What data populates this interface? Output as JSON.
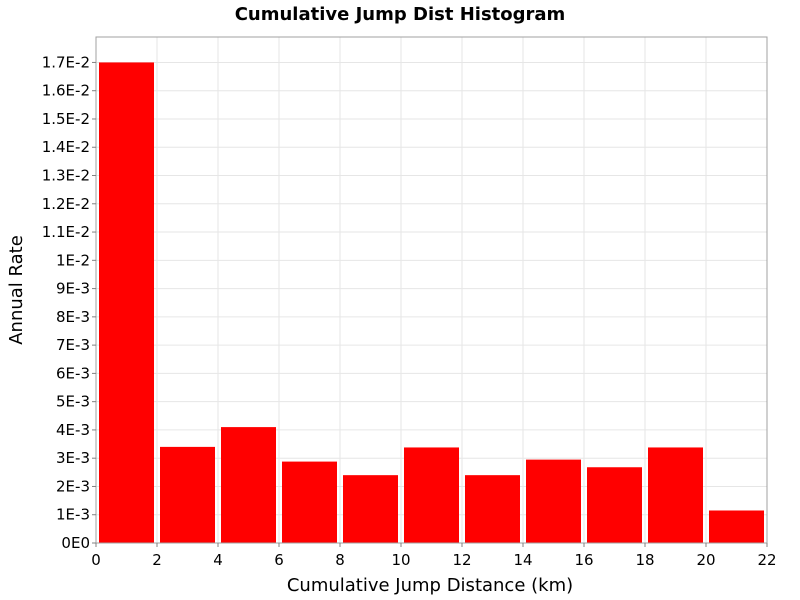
{
  "chart_data": {
    "type": "bar",
    "title": "Cumulative Jump Dist Histogram",
    "xlabel": "Cumulative Jump Distance (km)",
    "ylabel": "Annual Rate",
    "xlim": [
      0,
      22
    ],
    "ylim": [
      0,
      0.0179
    ],
    "grid": true,
    "legend": "none",
    "bar_color": "#ff0000",
    "x_ticks": [
      0,
      2,
      4,
      6,
      8,
      10,
      12,
      14,
      16,
      18,
      20,
      22
    ],
    "x_tick_labels": [
      "0",
      "2",
      "4",
      "6",
      "8",
      "10",
      "12",
      "14",
      "16",
      "18",
      "20",
      "22"
    ],
    "y_ticks": [
      0,
      0.001,
      0.002,
      0.003,
      0.004,
      0.005,
      0.006,
      0.007,
      0.008,
      0.009,
      0.01,
      0.011,
      0.012,
      0.013,
      0.014,
      0.015,
      0.016,
      0.017
    ],
    "y_tick_labels": [
      "0E0",
      "1E-3",
      "2E-3",
      "3E-3",
      "4E-3",
      "5E-3",
      "6E-3",
      "7E-3",
      "8E-3",
      "9E-3",
      "1E-2",
      "1.1E-2",
      "1.2E-2",
      "1.3E-2",
      "1.4E-2",
      "1.5E-2",
      "1.6E-2",
      "1.7E-2"
    ],
    "bins": [
      {
        "x_start": 0,
        "x_end": 2,
        "value": 0.017
      },
      {
        "x_start": 2,
        "x_end": 4,
        "value": 0.0034
      },
      {
        "x_start": 4,
        "x_end": 6,
        "value": 0.0041
      },
      {
        "x_start": 6,
        "x_end": 8,
        "value": 0.00288
      },
      {
        "x_start": 8,
        "x_end": 10,
        "value": 0.0024
      },
      {
        "x_start": 10,
        "x_end": 12,
        "value": 0.00338
      },
      {
        "x_start": 12,
        "x_end": 14,
        "value": 0.0024
      },
      {
        "x_start": 14,
        "x_end": 16,
        "value": 0.00295
      },
      {
        "x_start": 16,
        "x_end": 18,
        "value": 0.00268
      },
      {
        "x_start": 18,
        "x_end": 20,
        "value": 0.00338
      },
      {
        "x_start": 20,
        "x_end": 22,
        "value": 0.00115
      }
    ]
  }
}
